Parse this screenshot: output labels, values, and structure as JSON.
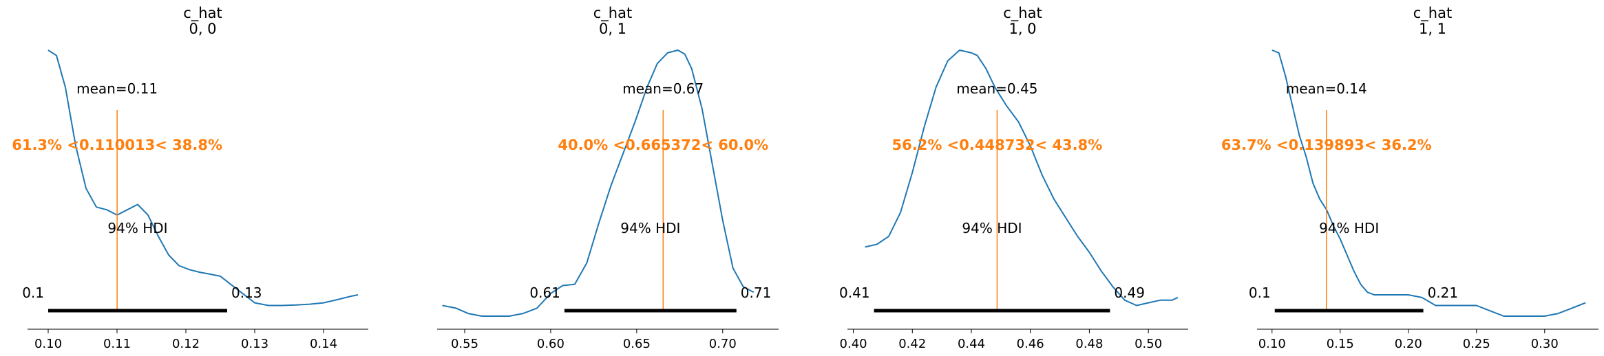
{
  "colors": {
    "density": "#1f77b4",
    "reference": "#ff7f0e",
    "hdi_bar": "#000000",
    "text": "#000000",
    "axis": "#000000"
  },
  "chart_data": [
    {
      "type": "line",
      "title": "c_hat\n0, 0",
      "title_lines": [
        "c_hat",
        "0, 0"
      ],
      "xlim": [
        0.097,
        0.1465
      ],
      "xticks": [
        0.1,
        0.11,
        0.12,
        0.13,
        0.14
      ],
      "xtick_labels": [
        "0.10",
        "0.11",
        "0.12",
        "0.13",
        "0.14"
      ],
      "density": {
        "x": [
          0.1,
          0.1012,
          0.1025,
          0.104,
          0.1055,
          0.107,
          0.1085,
          0.11,
          0.1115,
          0.113,
          0.1145,
          0.116,
          0.1175,
          0.119,
          0.1205,
          0.122,
          0.1235,
          0.125,
          0.1265,
          0.128,
          0.13,
          0.132,
          0.134,
          0.136,
          0.138,
          0.14,
          0.142,
          0.144,
          0.145
        ],
        "y": [
          1.0,
          0.98,
          0.86,
          0.64,
          0.48,
          0.41,
          0.4,
          0.38,
          0.4,
          0.42,
          0.38,
          0.3,
          0.23,
          0.19,
          0.175,
          0.165,
          0.158,
          0.15,
          0.12,
          0.09,
          0.05,
          0.04,
          0.04,
          0.042,
          0.045,
          0.05,
          0.062,
          0.075,
          0.08
        ]
      },
      "mean_label": "mean=0.11",
      "mean": 0.110013,
      "ref_label": "61.3% <0.110013< 38.8%",
      "ref_val": 0.110013,
      "hdi_label": "94% HDI",
      "hdi": [
        0.1,
        0.126
      ],
      "hdi_lower_label": "0.1",
      "hdi_upper_label": "0.13"
    },
    {
      "type": "line",
      "title": "c_hat\n0, 1",
      "title_lines": [
        "c_hat",
        "0, 1"
      ],
      "xlim": [
        0.534,
        0.7325
      ],
      "xticks": [
        0.55,
        0.6,
        0.65,
        0.7
      ],
      "xtick_labels": [
        "0.55",
        "0.60",
        "0.65",
        "0.70"
      ],
      "density": {
        "x": [
          0.537,
          0.545,
          0.552,
          0.56,
          0.568,
          0.576,
          0.584,
          0.592,
          0.6,
          0.607,
          0.614,
          0.621,
          0.628,
          0.635,
          0.642,
          0.649,
          0.656,
          0.662,
          0.668,
          0.674,
          0.678,
          0.682,
          0.688,
          0.694,
          0.7,
          0.706,
          0.712,
          0.718
        ],
        "y": [
          0.04,
          0.03,
          0.01,
          0.0,
          0.0,
          0.0,
          0.01,
          0.03,
          0.085,
          0.115,
          0.12,
          0.2,
          0.35,
          0.49,
          0.61,
          0.73,
          0.86,
          0.95,
          0.99,
          1.0,
          0.985,
          0.93,
          0.78,
          0.57,
          0.36,
          0.18,
          0.11,
          0.09
        ]
      },
      "mean_label": "mean=0.67",
      "mean": 0.665372,
      "ref_label": "40.0% <0.665372< 60.0%",
      "ref_val": 0.665372,
      "hdi_label": "94% HDI",
      "hdi": [
        0.608,
        0.708
      ],
      "hdi_lower_label": "0.61",
      "hdi_upper_label": "0.71"
    },
    {
      "type": "line",
      "title": "c_hat\n1, 0",
      "title_lines": [
        "c_hat",
        "1, 0"
      ],
      "xlim": [
        0.398,
        0.5135
      ],
      "xticks": [
        0.4,
        0.42,
        0.44,
        0.46,
        0.48,
        0.5
      ],
      "xtick_labels": [
        "0.40",
        "0.42",
        "0.44",
        "0.46",
        "0.48",
        "0.50"
      ],
      "density": {
        "x": [
          0.404,
          0.408,
          0.412,
          0.416,
          0.42,
          0.424,
          0.428,
          0.432,
          0.436,
          0.44,
          0.442,
          0.445,
          0.448,
          0.452,
          0.456,
          0.46,
          0.464,
          0.468,
          0.472,
          0.476,
          0.48,
          0.484,
          0.488,
          0.492,
          0.496,
          0.5,
          0.504,
          0.508,
          0.51
        ],
        "y": [
          0.26,
          0.27,
          0.3,
          0.39,
          0.54,
          0.71,
          0.86,
          0.96,
          1.0,
          0.99,
          0.98,
          0.93,
          0.86,
          0.79,
          0.73,
          0.64,
          0.53,
          0.44,
          0.37,
          0.3,
          0.24,
          0.17,
          0.11,
          0.06,
          0.04,
          0.05,
          0.06,
          0.06,
          0.07
        ]
      },
      "mean_label": "mean=0.45",
      "mean": 0.448732,
      "ref_label": "56.2% <0.448732< 43.8%",
      "ref_val": 0.448732,
      "hdi_label": "94% HDI",
      "hdi": [
        0.407,
        0.487
      ],
      "hdi_lower_label": "0.41",
      "hdi_upper_label": "0.49"
    },
    {
      "type": "line",
      "title": "c_hat\n1, 1",
      "title_lines": [
        "c_hat",
        "1, 1"
      ],
      "xlim": [
        0.089,
        0.3395
      ],
      "xticks": [
        0.1,
        0.15,
        0.2,
        0.25,
        0.3
      ],
      "xtick_labels": [
        "0.10",
        "0.15",
        "0.20",
        "0.25",
        "0.30"
      ],
      "density": {
        "x": [
          0.1,
          0.105,
          0.11,
          0.115,
          0.12,
          0.125,
          0.13,
          0.135,
          0.14,
          0.145,
          0.15,
          0.155,
          0.16,
          0.165,
          0.17,
          0.175,
          0.18,
          0.19,
          0.2,
          0.21,
          0.22,
          0.23,
          0.24,
          0.25,
          0.26,
          0.27,
          0.28,
          0.29,
          0.3,
          0.31,
          0.32,
          0.33
        ],
        "y": [
          1.0,
          0.99,
          0.9,
          0.79,
          0.68,
          0.6,
          0.5,
          0.44,
          0.4,
          0.34,
          0.29,
          0.23,
          0.17,
          0.12,
          0.09,
          0.08,
          0.08,
          0.08,
          0.08,
          0.07,
          0.04,
          0.04,
          0.04,
          0.04,
          0.02,
          0.0,
          0.0,
          0.0,
          0.0,
          0.01,
          0.03,
          0.05
        ]
      },
      "mean_label": "mean=0.14",
      "mean": 0.139893,
      "ref_label": "63.7% <0.139893< 36.2%",
      "ref_val": 0.139893,
      "hdi_label": "94% HDI",
      "hdi": [
        0.102,
        0.211
      ],
      "hdi_lower_label": "0.1",
      "hdi_upper_label": "0.21"
    }
  ]
}
